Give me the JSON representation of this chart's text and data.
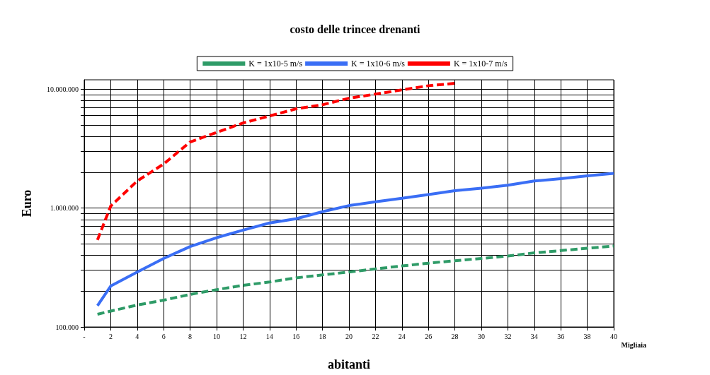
{
  "chart_data": {
    "type": "line",
    "title": "costo delle trincee drenanti",
    "xlabel": "abitanti",
    "ylabel": "Euro",
    "annotations": [
      "Migliaia"
    ],
    "xlim": [
      0,
      40
    ],
    "xticks": [
      {
        "value": 0,
        "label": "-"
      },
      2,
      4,
      6,
      8,
      10,
      12,
      14,
      16,
      18,
      20,
      22,
      24,
      26,
      28,
      30,
      32,
      34,
      36,
      38,
      40
    ],
    "ylim": [
      100000,
      12000000
    ],
    "yticks": [
      {
        "value": 100000,
        "label": "100.000"
      },
      {
        "value": 200000,
        "label": null
      },
      {
        "value": 300000,
        "label": null
      },
      {
        "value": 400000,
        "label": null
      },
      {
        "value": 500000,
        "label": null
      },
      {
        "value": 600000,
        "label": null
      },
      {
        "value": 700000,
        "label": null
      },
      {
        "value": 800000,
        "label": null
      },
      {
        "value": 900000,
        "label": null
      },
      {
        "value": 1000000,
        "label": "1.000.000"
      },
      {
        "value": 2000000,
        "label": null
      },
      {
        "value": 3000000,
        "label": null
      },
      {
        "value": 4000000,
        "label": null
      },
      {
        "value": 5000000,
        "label": null
      },
      {
        "value": 6000000,
        "label": null
      },
      {
        "value": 7000000,
        "label": null
      },
      {
        "value": 8000000,
        "label": null
      },
      {
        "value": 9000000,
        "label": null
      },
      {
        "value": 10000000,
        "label": "10.000.000"
      }
    ],
    "log": "y",
    "grid": true,
    "legend": "top",
    "marker": "none",
    "series": [
      {
        "name": "K = 1x10-5 m/s",
        "color": "#2e9b67",
        "line_style": "dashed",
        "x": [
          1,
          2,
          4,
          6,
          8,
          10,
          12,
          14,
          16,
          18,
          20,
          22,
          24,
          26,
          28,
          30,
          32,
          34,
          36,
          38,
          40
        ],
        "values": [
          128000,
          136000,
          153000,
          168000,
          188000,
          206000,
          224000,
          239000,
          259000,
          274000,
          290000,
          308000,
          326000,
          344000,
          361000,
          377000,
          395000,
          420000,
          439000,
          459000,
          479000
        ]
      },
      {
        "name": "K = 1x10-6 m/s",
        "color": "#3a6ef5",
        "line_style": "solid",
        "x": [
          1,
          2,
          4,
          6,
          8,
          10,
          12,
          14,
          16,
          18,
          20,
          22,
          24,
          26,
          28,
          30,
          32,
          34,
          36,
          38,
          40
        ],
        "values": [
          151000,
          221000,
          290000,
          377000,
          475000,
          564000,
          653000,
          750000,
          813000,
          933000,
          1050000,
          1130000,
          1210000,
          1300000,
          1400000,
          1470000,
          1560000,
          1690000,
          1770000,
          1870000,
          1960000
        ]
      },
      {
        "name": "K = 1x10-7 m/s",
        "color": "#ff0000",
        "line_style": "dashed",
        "x": [
          1,
          2,
          4,
          6,
          8,
          10,
          12,
          14,
          16,
          18,
          20,
          22,
          24,
          26,
          28
        ],
        "values": [
          540000,
          1040000,
          1690000,
          2350000,
          3600000,
          4330000,
          5200000,
          5960000,
          6840000,
          7400000,
          8400000,
          9100000,
          9870000,
          10700000,
          11200000
        ]
      }
    ]
  }
}
